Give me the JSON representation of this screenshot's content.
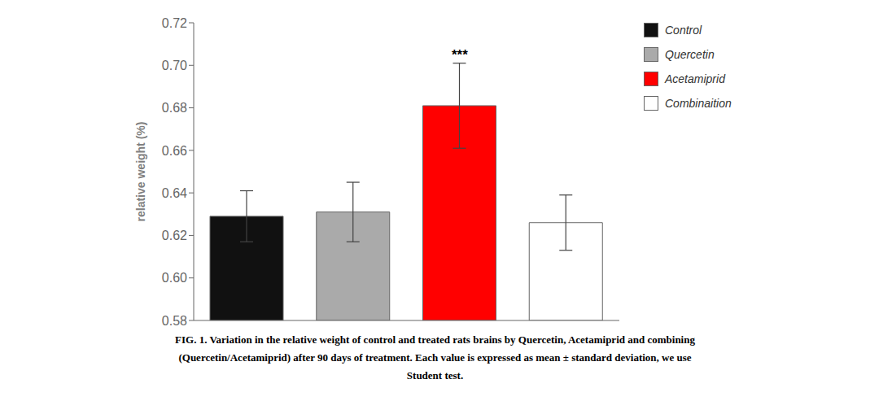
{
  "chart_data": {
    "type": "bar",
    "categories": [
      "Control",
      "Quercetin",
      "Acetamiprid",
      "Combinaition"
    ],
    "values": [
      0.629,
      0.631,
      0.681,
      0.626
    ],
    "errors": [
      0.012,
      0.014,
      0.02,
      0.013
    ],
    "colors": [
      "#111111",
      "#aaaaaa",
      "#ff0000",
      "#ffffff"
    ],
    "ylim": [
      0.58,
      0.72
    ],
    "yticks": [
      0.58,
      {
        "value": 0.6,
        "label": "0.60"
      },
      0.62,
      0.64,
      0.66,
      0.68,
      {
        "value": 0.7,
        "label": "0.70"
      },
      0.72
    ],
    "ylabel": "relative weight (%)",
    "tick_labels": "y",
    "legend": "right",
    "grid": false,
    "annotations": [
      {
        "text": "***",
        "category": "Acetamiprid"
      }
    ],
    "caption": [
      "FIG. 1. Variation in the relative weight of control and treated rats brains by Quercetin, Acetamiprid and combining",
      "(Quercetin/Acetamiprid) after 90 days of treatment. Each value is expressed as mean ± standard deviation, we use",
      "Student test."
    ]
  }
}
